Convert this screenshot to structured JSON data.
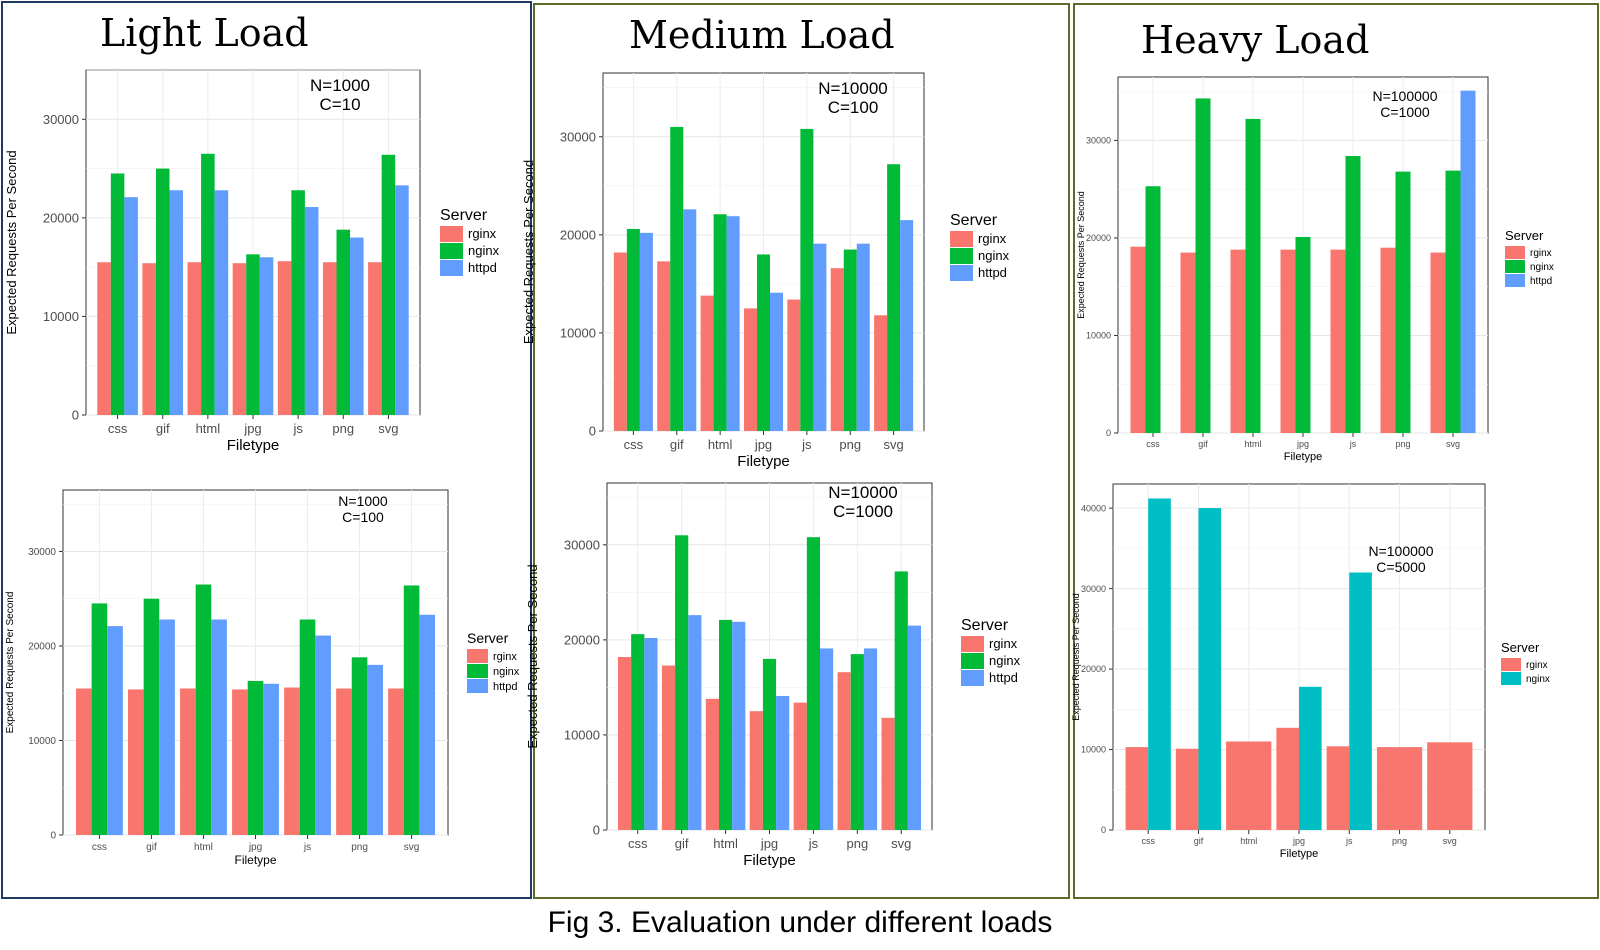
{
  "panels": [
    {
      "title": "Light Load",
      "border_color": "#1f3864"
    },
    {
      "title": "Medium Load",
      "border_color": "#5a6b2a"
    },
    {
      "title": "Heavy Load",
      "border_color": "#5a6b2a"
    }
  ],
  "caption": "Fig 3. Evaluation under different loads",
  "colors": {
    "rginx": "#F8766D",
    "nginx": "#00BA38",
    "httpd": "#619CFF",
    "nginx_teal": "#00BFC4"
  },
  "chart_data": [
    {
      "type": "bar",
      "annotation": [
        "N=1000",
        "C=10"
      ],
      "xlabel": "Filetype",
      "ylabel": "Expected Requests Per Second",
      "categories": [
        "css",
        "gif",
        "html",
        "jpg",
        "js",
        "png",
        "svg"
      ],
      "yticks": [
        0,
        10000,
        20000,
        30000
      ],
      "ylim": [
        0,
        35000
      ],
      "legend": {
        "title": "Server",
        "position": "right"
      },
      "series": [
        {
          "name": "rginx",
          "color": "#F8766D",
          "values": [
            15500,
            15400,
            15500,
            15400,
            15600,
            15500,
            15500
          ]
        },
        {
          "name": "nginx",
          "color": "#00BA38",
          "values": [
            24500,
            25000,
            26500,
            16300,
            22800,
            18800,
            26400
          ]
        },
        {
          "name": "httpd",
          "color": "#619CFF",
          "values": [
            22100,
            22800,
            22800,
            16000,
            21100,
            18000,
            23300
          ]
        }
      ]
    },
    {
      "type": "bar",
      "annotation": [
        "N=1000",
        "C=100"
      ],
      "xlabel": "Filetype",
      "ylabel": "Expected Requests Per Second",
      "categories": [
        "css",
        "gif",
        "html",
        "jpg",
        "js",
        "png",
        "svg"
      ],
      "yticks": [
        0,
        10000,
        20000,
        30000
      ],
      "ylim": [
        0,
        36500
      ],
      "legend": {
        "title": "Server",
        "position": "right"
      },
      "series": [
        {
          "name": "rginx",
          "color": "#F8766D",
          "values": [
            15500,
            15400,
            15500,
            15400,
            15600,
            15500,
            15500
          ]
        },
        {
          "name": "nginx",
          "color": "#00BA38",
          "values": [
            24500,
            25000,
            26500,
            16300,
            22800,
            18800,
            26400
          ]
        },
        {
          "name": "httpd",
          "color": "#619CFF",
          "values": [
            22100,
            22800,
            22800,
            16000,
            21100,
            18000,
            23300
          ]
        }
      ]
    },
    {
      "type": "bar",
      "annotation": [
        "N=10000",
        "C=100"
      ],
      "xlabel": "Filetype",
      "ylabel": "Expected Requests Per Second",
      "categories": [
        "css",
        "gif",
        "html",
        "jpg",
        "js",
        "png",
        "svg"
      ],
      "yticks": [
        0,
        10000,
        20000,
        30000
      ],
      "ylim": [
        0,
        36500
      ],
      "legend": {
        "title": "Server",
        "position": "right"
      },
      "series": [
        {
          "name": "rginx",
          "color": "#F8766D",
          "values": [
            18200,
            17300,
            13800,
            12500,
            13400,
            16600,
            11800
          ]
        },
        {
          "name": "nginx",
          "color": "#00BA38",
          "values": [
            20600,
            31000,
            22100,
            18000,
            30800,
            18500,
            27200
          ]
        },
        {
          "name": "httpd",
          "color": "#619CFF",
          "values": [
            20200,
            22600,
            21900,
            14100,
            19100,
            19100,
            21500
          ]
        }
      ]
    },
    {
      "type": "bar",
      "annotation": [
        "N=10000",
        "C=1000"
      ],
      "xlabel": "Filetype",
      "ylabel": "Expected Requests Per Second",
      "categories": [
        "css",
        "gif",
        "html",
        "jpg",
        "js",
        "png",
        "svg"
      ],
      "yticks": [
        0,
        10000,
        20000,
        30000
      ],
      "ylim": [
        0,
        36500
      ],
      "legend": {
        "title": "Server",
        "position": "right"
      },
      "series": [
        {
          "name": "rginx",
          "color": "#F8766D",
          "values": [
            18200,
            17300,
            13800,
            12500,
            13400,
            16600,
            11800
          ]
        },
        {
          "name": "nginx",
          "color": "#00BA38",
          "values": [
            20600,
            31000,
            22100,
            18000,
            30800,
            18500,
            27200
          ]
        },
        {
          "name": "httpd",
          "color": "#619CFF",
          "values": [
            20200,
            22600,
            21900,
            14100,
            19100,
            19100,
            21500
          ]
        }
      ]
    },
    {
      "type": "bar",
      "annotation": [
        "N=100000",
        "C=1000"
      ],
      "xlabel": "Filetype",
      "ylabel": "Expected Requests Per Second",
      "categories": [
        "css",
        "gif",
        "html",
        "jpg",
        "js",
        "png",
        "svg"
      ],
      "yticks": [
        0,
        10000,
        20000,
        30000
      ],
      "ylim": [
        0,
        36500
      ],
      "legend": {
        "title": "Server",
        "position": "right"
      },
      "series": [
        {
          "name": "rginx",
          "color": "#F8766D",
          "values": [
            19100,
            18500,
            18800,
            18800,
            18800,
            19000,
            18500
          ]
        },
        {
          "name": "nginx",
          "color": "#00BA38",
          "values": [
            25300,
            34300,
            32200,
            20100,
            28400,
            26800,
            26900
          ]
        },
        {
          "name": "httpd",
          "color": "#619CFF",
          "values": [
            null,
            null,
            null,
            null,
            null,
            null,
            35100
          ]
        }
      ]
    },
    {
      "type": "bar",
      "annotation": [
        "N=100000",
        "C=5000"
      ],
      "xlabel": "Filetype",
      "ylabel": "Expected Requests Per Second",
      "categories": [
        "css",
        "gif",
        "html",
        "jpg",
        "js",
        "png",
        "svg"
      ],
      "yticks": [
        0,
        10000,
        20000,
        30000,
        40000
      ],
      "ylim": [
        0,
        43000
      ],
      "legend": {
        "title": "Server",
        "position": "right"
      },
      "series": [
        {
          "name": "rginx",
          "color": "#F8766D",
          "values": [
            10300,
            10100,
            11000,
            12700,
            10400,
            10300,
            10900
          ]
        },
        {
          "name": "nginx",
          "color": "#00BFC4",
          "values": [
            41200,
            40000,
            null,
            17800,
            32000,
            null,
            null
          ]
        }
      ]
    }
  ]
}
